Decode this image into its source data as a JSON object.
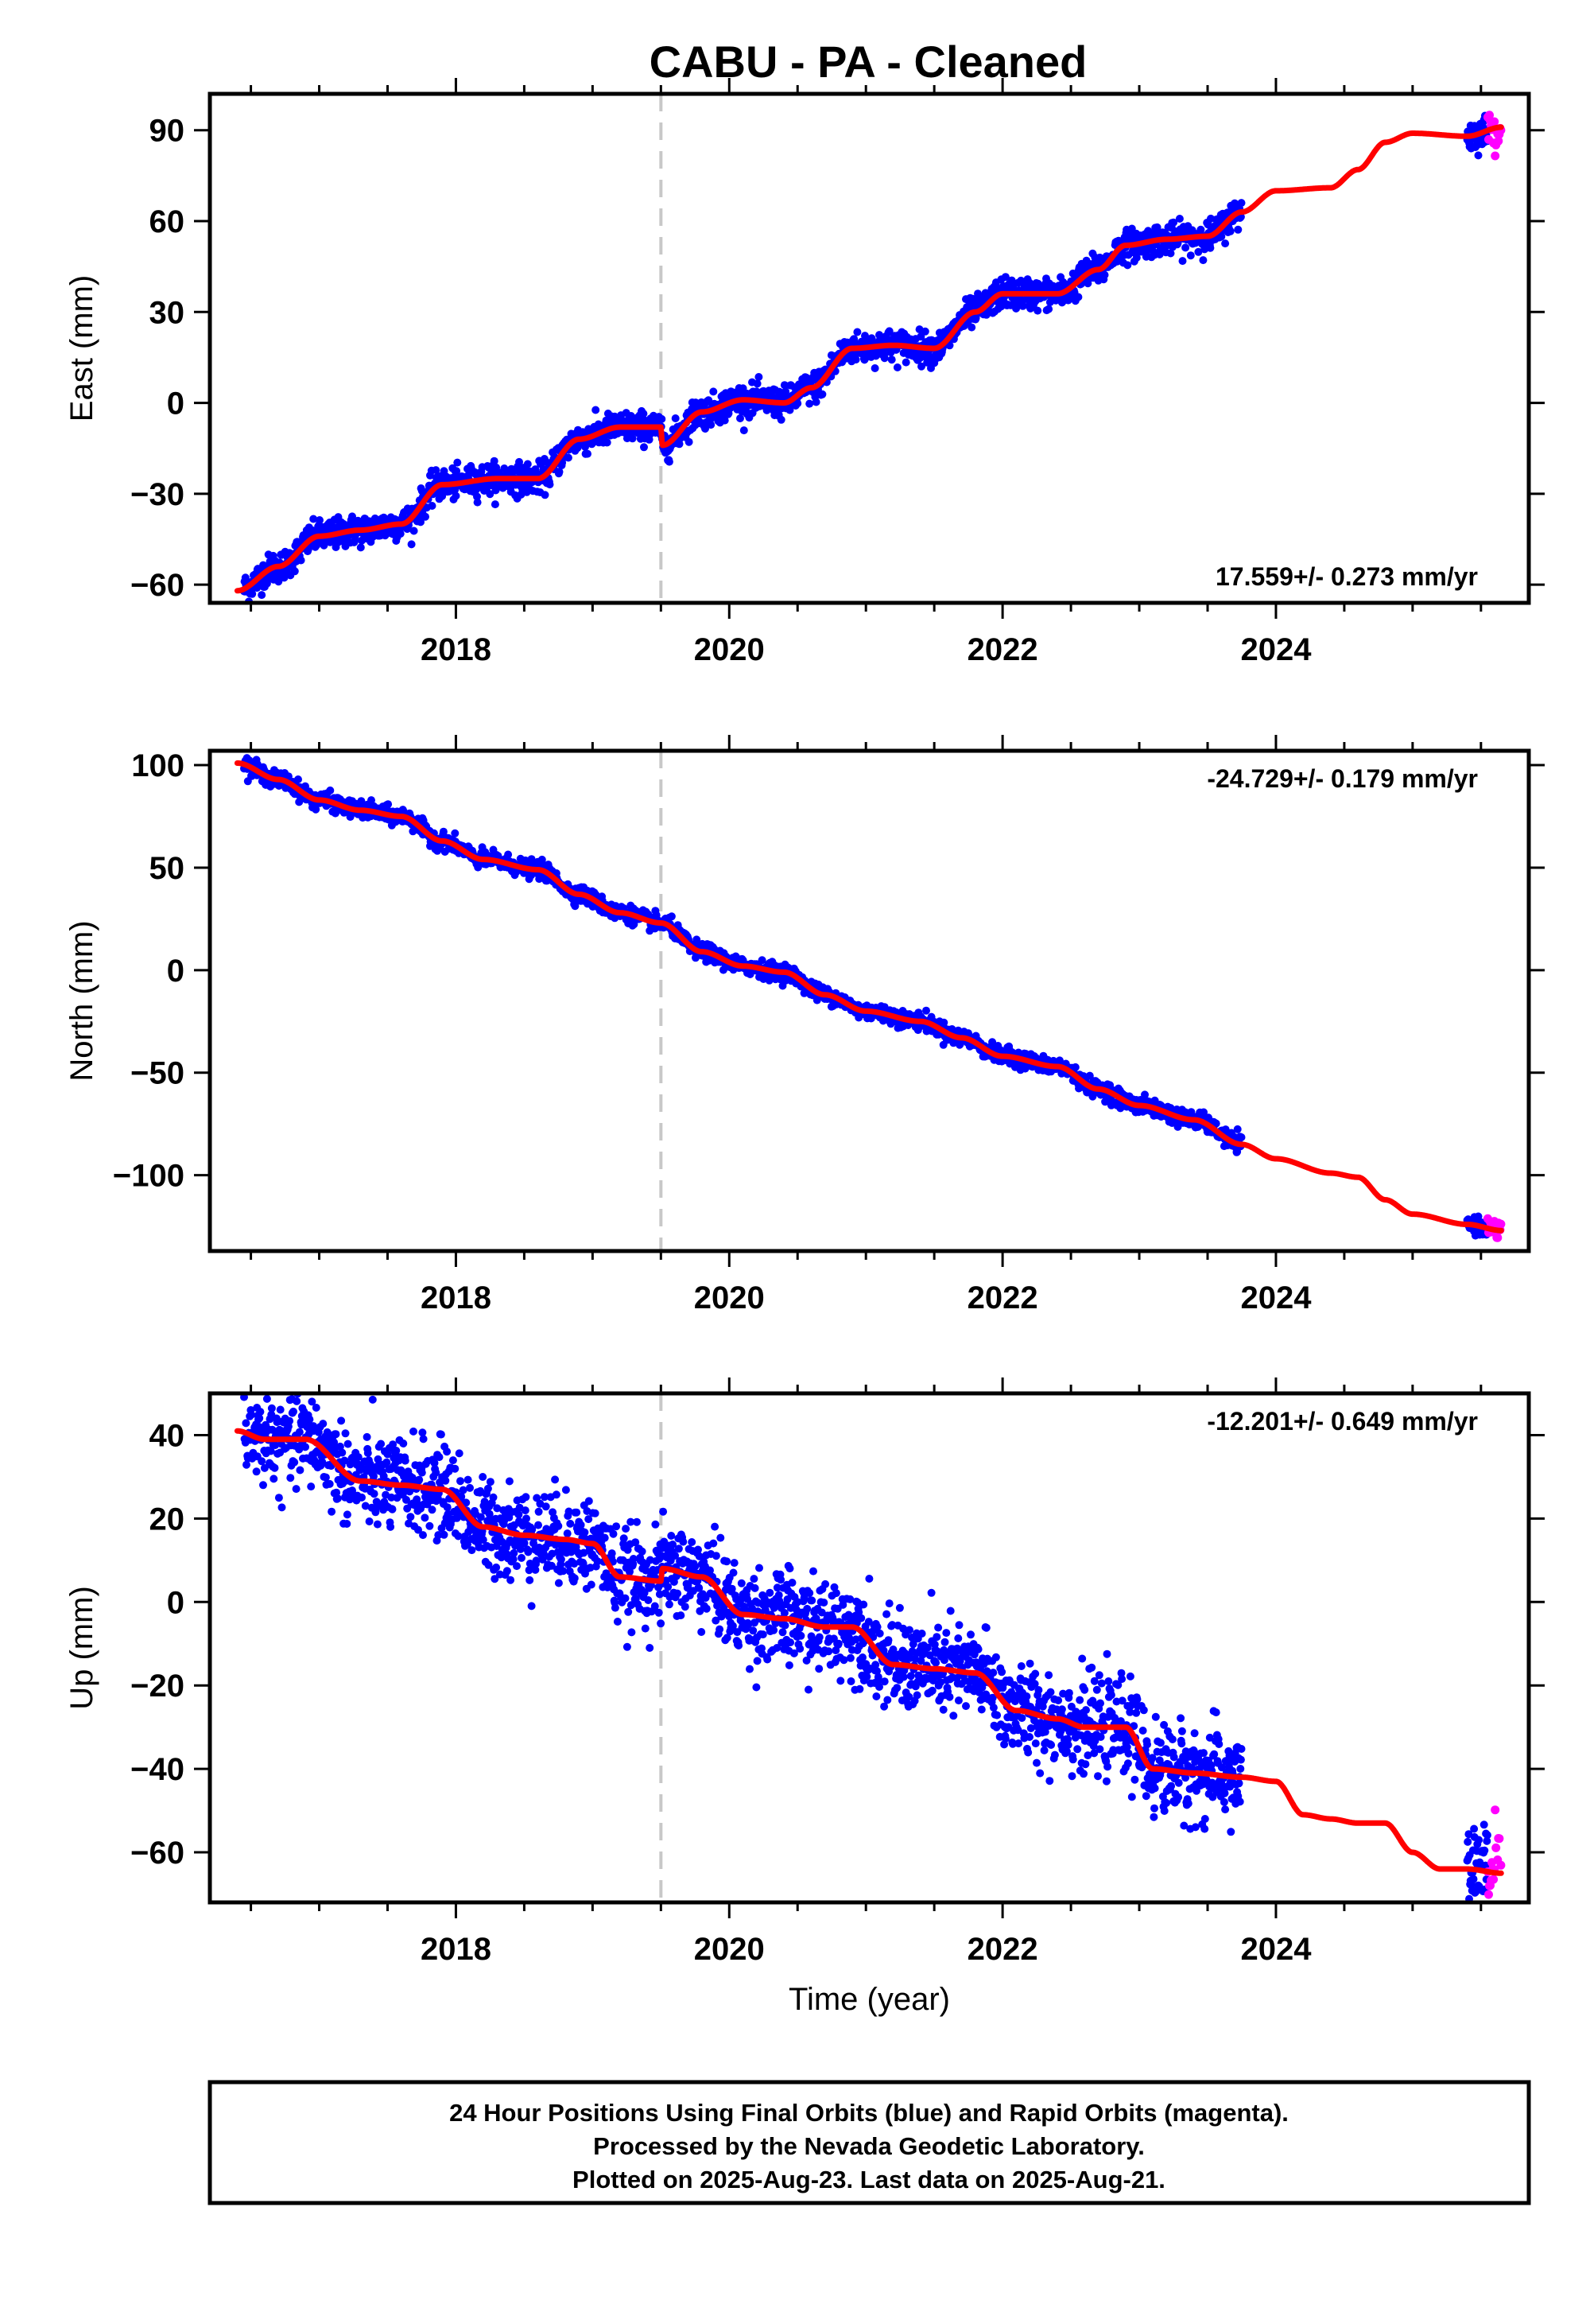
{
  "title": "CABU  - PA - Cleaned",
  "caption": {
    "line1": "24 Hour Positions Using Final Orbits (blue) and Rapid Orbits (magenta).",
    "line2": "Processed by the Nevada Geodetic Laboratory.",
    "line3": "Plotted on 2025-Aug-23. Last data on 2025-Aug-21."
  },
  "colors": {
    "final_orbits": "#0000ff",
    "rapid_orbits": "#ff00ff",
    "model": "#ff0000",
    "marker_line": "#c8c8c8"
  },
  "chart_data": [
    {
      "type": "scatter",
      "panel": "east",
      "ylabel": "East (mm)",
      "xlabel": "",
      "xlim": [
        2016.2,
        2025.85
      ],
      "ylim": [
        -66,
        102
      ],
      "xticks": [
        2018,
        2020,
        2022,
        2024
      ],
      "yticks": [
        -60,
        -30,
        0,
        30,
        60,
        90
      ],
      "rate_label": "17.559+/- 0.273 mm/yr",
      "rate_position": "bottom-right",
      "equipment_change": 2019.5,
      "model_knots": [
        [
          2016.4,
          -62
        ],
        [
          2016.7,
          -54
        ],
        [
          2017.0,
          -44
        ],
        [
          2017.3,
          -42
        ],
        [
          2017.6,
          -40
        ],
        [
          2017.9,
          -27
        ],
        [
          2018.3,
          -25
        ],
        [
          2018.6,
          -25
        ],
        [
          2018.9,
          -12
        ],
        [
          2019.2,
          -8
        ],
        [
          2019.5,
          -8
        ],
        [
          2019.51,
          -14
        ],
        [
          2019.8,
          -3
        ],
        [
          2020.1,
          1
        ],
        [
          2020.4,
          0
        ],
        [
          2020.6,
          5
        ],
        [
          2020.9,
          18
        ],
        [
          2021.2,
          19
        ],
        [
          2021.5,
          18
        ],
        [
          2021.8,
          30
        ],
        [
          2022.0,
          36
        ],
        [
          2022.4,
          36
        ],
        [
          2022.7,
          44
        ],
        [
          2022.9,
          52
        ],
        [
          2023.2,
          54
        ],
        [
          2023.5,
          55
        ],
        [
          2023.75,
          63
        ],
        [
          2024.0,
          70
        ],
        [
          2024.4,
          71
        ],
        [
          2024.6,
          77
        ],
        [
          2024.8,
          86
        ],
        [
          2025.0,
          89
        ],
        [
          2025.4,
          88
        ],
        [
          2025.65,
          91
        ]
      ],
      "final_span": [
        [
          2016.45,
          2023.75
        ],
        [
          2025.4,
          2025.55
        ]
      ],
      "rapid_span": [
        2025.55,
        2025.65
      ],
      "scatter": 2.5
    },
    {
      "type": "scatter",
      "panel": "north",
      "ylabel": "North (mm)",
      "xlabel": "",
      "xlim": [
        2016.2,
        2025.85
      ],
      "ylim": [
        -137,
        107
      ],
      "xticks": [
        2018,
        2020,
        2022,
        2024
      ],
      "yticks": [
        -100,
        -50,
        0,
        50,
        100
      ],
      "rate_label": "-24.729+/- 0.179 mm/yr",
      "rate_position": "top-right",
      "equipment_change": 2019.5,
      "model_knots": [
        [
          2016.4,
          101
        ],
        [
          2016.7,
          93
        ],
        [
          2017.0,
          83
        ],
        [
          2017.3,
          78
        ],
        [
          2017.6,
          75
        ],
        [
          2017.9,
          63
        ],
        [
          2018.2,
          54
        ],
        [
          2018.6,
          49
        ],
        [
          2018.9,
          37
        ],
        [
          2019.2,
          28
        ],
        [
          2019.5,
          23
        ],
        [
          2019.8,
          9
        ],
        [
          2020.1,
          2
        ],
        [
          2020.4,
          -1
        ],
        [
          2020.7,
          -12
        ],
        [
          2021.0,
          -20
        ],
        [
          2021.4,
          -25
        ],
        [
          2021.7,
          -33
        ],
        [
          2022.0,
          -42
        ],
        [
          2022.4,
          -47
        ],
        [
          2022.7,
          -58
        ],
        [
          2023.0,
          -66
        ],
        [
          2023.4,
          -73
        ],
        [
          2023.75,
          -85
        ],
        [
          2024.0,
          -92
        ],
        [
          2024.4,
          -99
        ],
        [
          2024.6,
          -101
        ],
        [
          2024.8,
          -112
        ],
        [
          2025.0,
          -119
        ],
        [
          2025.4,
          -124
        ],
        [
          2025.65,
          -127
        ]
      ],
      "final_span": [
        [
          2016.45,
          2023.75
        ],
        [
          2025.4,
          2025.55
        ]
      ],
      "rapid_span": [
        2025.55,
        2025.65
      ],
      "scatter": 2.0
    },
    {
      "type": "scatter",
      "panel": "up",
      "ylabel": "Up (mm)",
      "xlabel": "Time (year)",
      "xlim": [
        2016.2,
        2025.85
      ],
      "ylim": [
        -72,
        50
      ],
      "xticks": [
        2018,
        2020,
        2022,
        2024
      ],
      "yticks": [
        -60,
        -40,
        -20,
        0,
        20,
        40
      ],
      "rate_label": "-12.201+/- 0.649 mm/yr",
      "rate_position": "top-right",
      "equipment_change": 2019.5,
      "model_knots": [
        [
          2016.4,
          41
        ],
        [
          2016.6,
          39
        ],
        [
          2016.9,
          39
        ],
        [
          2017.3,
          29
        ],
        [
          2017.6,
          28
        ],
        [
          2017.9,
          27
        ],
        [
          2018.2,
          18
        ],
        [
          2018.5,
          16
        ],
        [
          2018.8,
          15
        ],
        [
          2019.0,
          14
        ],
        [
          2019.2,
          6
        ],
        [
          2019.5,
          5
        ],
        [
          2019.51,
          8
        ],
        [
          2019.8,
          6
        ],
        [
          2020.1,
          -3
        ],
        [
          2020.4,
          -4
        ],
        [
          2020.7,
          -6
        ],
        [
          2020.9,
          -6
        ],
        [
          2021.2,
          -15
        ],
        [
          2021.5,
          -16
        ],
        [
          2021.8,
          -17
        ],
        [
          2022.1,
          -26
        ],
        [
          2022.4,
          -28
        ],
        [
          2022.6,
          -30
        ],
        [
          2022.9,
          -30
        ],
        [
          2023.1,
          -40
        ],
        [
          2023.4,
          -41
        ],
        [
          2023.75,
          -42
        ],
        [
          2024.0,
          -43
        ],
        [
          2024.2,
          -51
        ],
        [
          2024.4,
          -52
        ],
        [
          2024.6,
          -53
        ],
        [
          2024.8,
          -53
        ],
        [
          2025.0,
          -60
        ],
        [
          2025.2,
          -64
        ],
        [
          2025.4,
          -64
        ],
        [
          2025.65,
          -65
        ]
      ],
      "final_span": [
        [
          2016.45,
          2023.75
        ],
        [
          2025.4,
          2025.55
        ]
      ],
      "rapid_span": [
        2025.55,
        2025.65
      ],
      "scatter": 5.5
    }
  ]
}
